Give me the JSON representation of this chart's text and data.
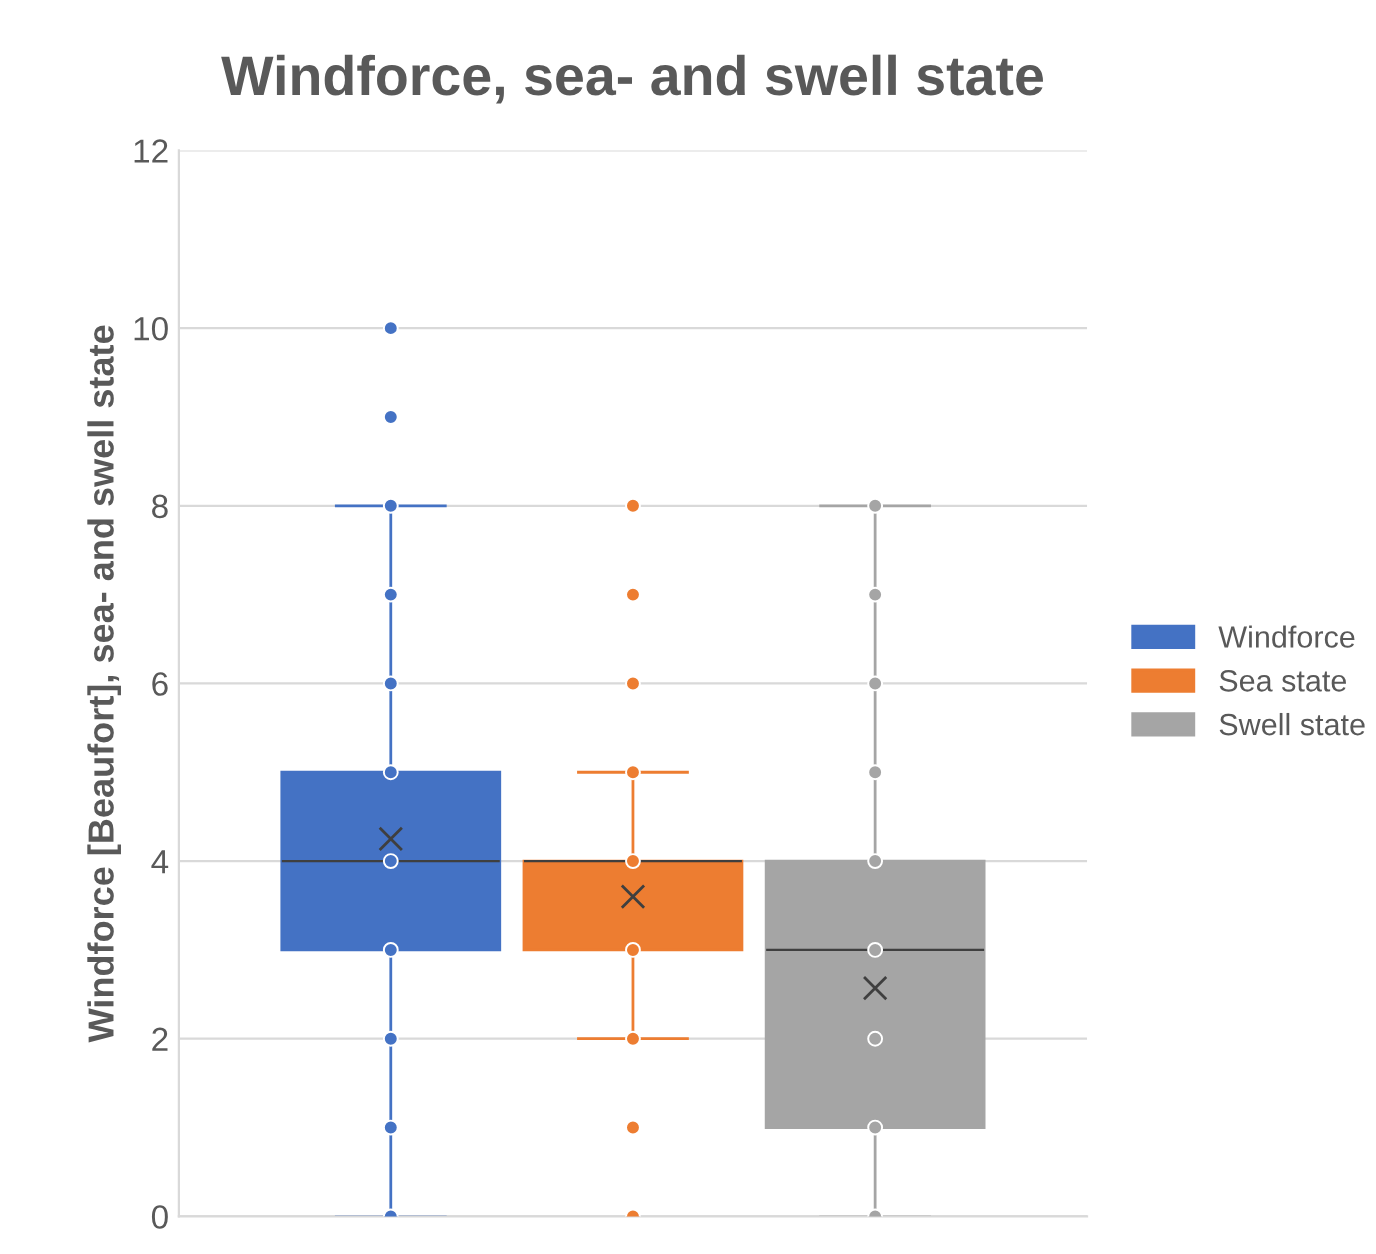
{
  "chart_data": {
    "type": "box",
    "title": "Windforce, sea- and swell state",
    "ylabel": "Windforce [Beaufort], sea- and swell state",
    "categories": [
      null
    ],
    "series": [
      {
        "name": "Windforce",
        "color": "#4472c4",
        "boxes": [
          {
            "low": 0,
            "q1": 3,
            "median": 4,
            "q3": 5,
            "high": 8,
            "mean": 4.25,
            "outliers": [
              0,
              1,
              2,
              3,
              4,
              5,
              6,
              7,
              8,
              9,
              10
            ]
          }
        ]
      },
      {
        "name": "Sea state",
        "color": "#ed7d31",
        "boxes": [
          {
            "low": 2,
            "q1": 3,
            "median": 4,
            "q3": 4,
            "high": 5,
            "mean": 3.6,
            "outliers": [
              0,
              1,
              2,
              3,
              4,
              5,
              6,
              7,
              8
            ]
          }
        ]
      },
      {
        "name": "Swell state",
        "color": "#a5a5a5",
        "boxes": [
          {
            "low": 0,
            "q1": 1,
            "median": 3,
            "q3": 4,
            "high": 8,
            "mean": 2.57,
            "outliers": [
              0,
              1,
              2,
              3,
              4,
              5,
              6,
              7,
              8
            ]
          }
        ]
      }
    ],
    "ylim": [
      0,
      12
    ],
    "yticks": [
      0,
      2,
      4,
      6,
      8,
      10,
      12
    ],
    "grid": "y",
    "legend": "right",
    "marker": "circle"
  }
}
